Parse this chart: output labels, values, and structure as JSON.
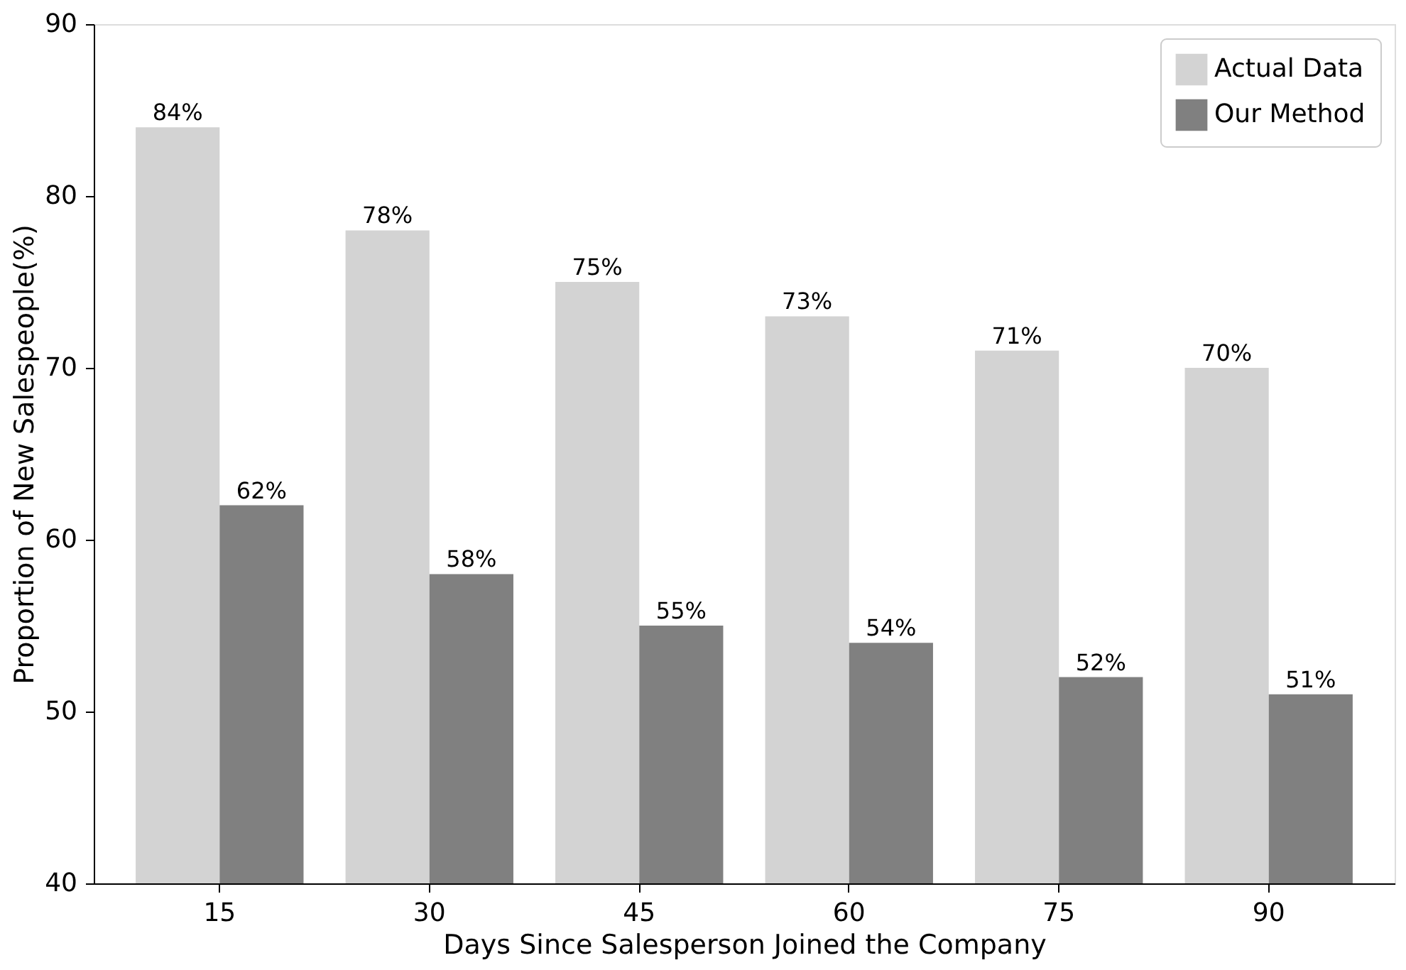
{
  "chart_data": {
    "type": "bar",
    "xlabel": "Days Since Salesperson Joined the Company",
    "ylabel": "Proportion of New Salespeople(%)",
    "categories": [
      "15",
      "30",
      "45",
      "60",
      "75",
      "90"
    ],
    "series": [
      {
        "name": "Actual Data",
        "color": "#d3d3d3",
        "values": [
          84,
          78,
          75,
          73,
          71,
          70
        ],
        "value_labels": [
          "84%",
          "78%",
          "75%",
          "73%",
          "71%",
          "70%"
        ]
      },
      {
        "name": "Our Method",
        "color": "#808080",
        "values": [
          62,
          58,
          55,
          54,
          52,
          51
        ],
        "value_labels": [
          "62%",
          "58%",
          "55%",
          "54%",
          "52%",
          "51%"
        ]
      }
    ],
    "ylim": [
      40,
      90
    ],
    "yticks": [
      40,
      50,
      60,
      70,
      80,
      90
    ],
    "grid": false,
    "legend": "top right"
  }
}
